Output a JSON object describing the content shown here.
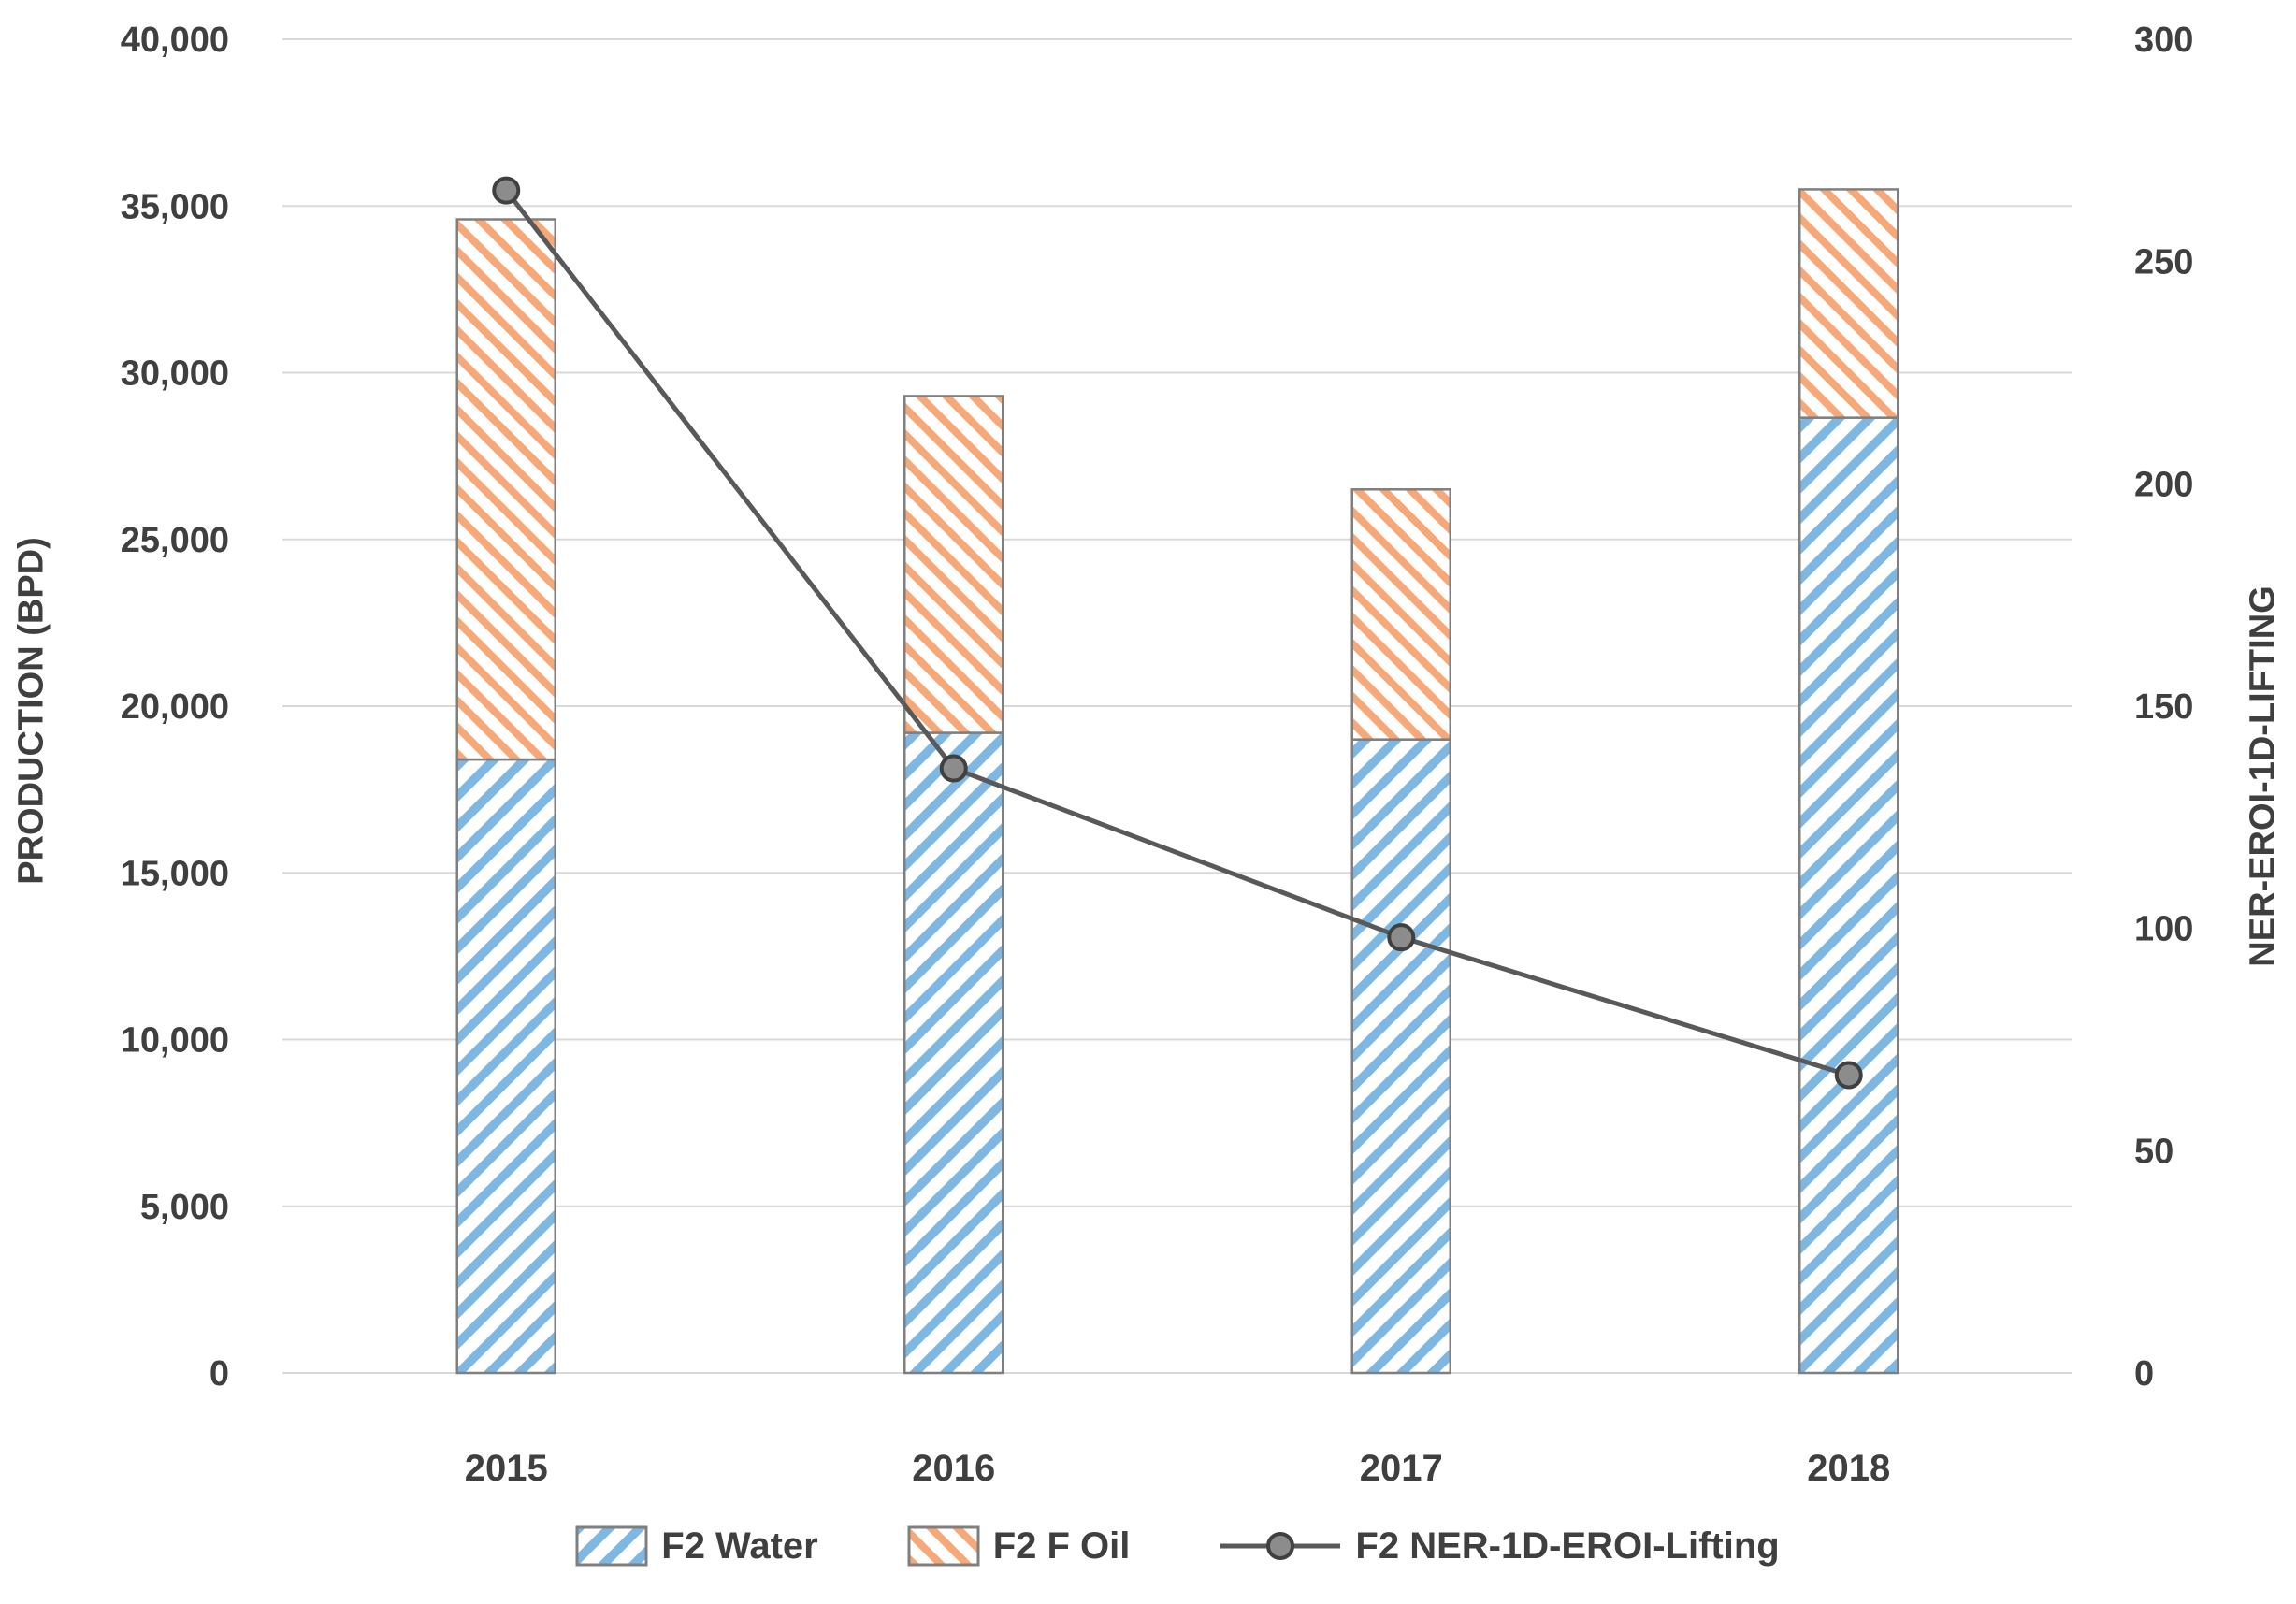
{
  "chart_data": {
    "type": "combo",
    "title": "",
    "categories": [
      "2015",
      "2016",
      "2017",
      "2018"
    ],
    "series": [
      {
        "name": "F2 Water",
        "type": "bar",
        "stacked": true,
        "yaxis": "left",
        "values": [
          18400,
          19200,
          19000,
          28650
        ],
        "color": "#7FB7E3",
        "hatch": "/"
      },
      {
        "name": "F2 F Oil",
        "type": "bar",
        "stacked": true,
        "yaxis": "left",
        "values": [
          16200,
          10100,
          7500,
          6850
        ],
        "color": "#F6A879",
        "hatch": "\\"
      },
      {
        "name": "F2 NER-1D-EROI-Lifting",
        "type": "line",
        "yaxis": "right",
        "values": [
          266,
          136,
          98,
          67
        ],
        "color": "#595959",
        "marker": "circle"
      }
    ],
    "stacked_totals": [
      34600,
      29300,
      26500,
      35500
    ],
    "left_axis": {
      "title": "PRODUCTION (BPD)",
      "min": 0,
      "max": 40000,
      "step": 5000,
      "tick_labels": [
        "0",
        "5,000",
        "10,000",
        "15,000",
        "20,000",
        "25,000",
        "30,000",
        "35,000",
        "40,000"
      ]
    },
    "right_axis": {
      "title": "NER-EROI-1D-LIFTING",
      "min": 0,
      "max": 300,
      "step": 50,
      "tick_labels": [
        "0",
        "50",
        "100",
        "150",
        "200",
        "250",
        "300"
      ]
    },
    "legend": {
      "position": "bottom",
      "entries": [
        "F2 Water",
        "F2 F Oil",
        "F2 NER-1D-EROI-Lifting"
      ]
    },
    "grid": true,
    "colors": {
      "gridline": "#D9D9D9",
      "text": "#3F3F3F",
      "bar_outline": "#7F7F7F",
      "line_series": "#595959",
      "marker_fill": "#8C8C8C",
      "marker_stroke": "#404040",
      "water_blue": "#7FB7E3",
      "oil_orange": "#F6A879"
    }
  }
}
